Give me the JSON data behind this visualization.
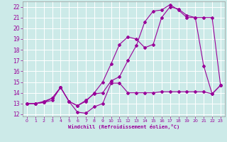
{
  "xlabel": "Windchill (Refroidissement éolien,°C)",
  "xlim": [
    -0.5,
    23.5
  ],
  "ylim": [
    11.8,
    22.5
  ],
  "xticks": [
    0,
    1,
    2,
    3,
    4,
    5,
    6,
    7,
    8,
    9,
    10,
    11,
    12,
    13,
    14,
    15,
    16,
    17,
    18,
    19,
    20,
    21,
    22,
    23
  ],
  "yticks": [
    12,
    13,
    14,
    15,
    16,
    17,
    18,
    19,
    20,
    21,
    22
  ],
  "bg_color": "#cceae8",
  "grid_color": "#b0d4d4",
  "line_color": "#990099",
  "curve1_x": [
    0,
    1,
    2,
    3,
    4,
    5,
    6,
    7,
    8,
    9,
    10,
    11,
    12,
    13,
    14,
    15,
    16,
    17,
    18,
    19,
    20,
    21,
    22,
    23
  ],
  "curve1_y": [
    13.0,
    13.0,
    13.1,
    13.3,
    14.5,
    13.2,
    12.2,
    12.1,
    12.7,
    13.0,
    14.9,
    14.9,
    14.0,
    14.0,
    14.0,
    14.0,
    14.1,
    14.1,
    14.1,
    14.1,
    14.1,
    14.1,
    13.9,
    14.7
  ],
  "curve2_x": [
    0,
    1,
    2,
    3,
    4,
    5,
    6,
    7,
    8,
    9,
    10,
    11,
    12,
    13,
    14,
    15,
    16,
    17,
    18,
    19,
    20,
    21,
    22,
    23
  ],
  "curve2_y": [
    13.0,
    13.0,
    13.1,
    13.5,
    14.5,
    13.2,
    12.8,
    13.2,
    14.0,
    15.0,
    16.7,
    18.5,
    19.2,
    19.0,
    18.2,
    18.5,
    21.0,
    22.0,
    21.8,
    21.2,
    21.0,
    16.5,
    13.9,
    14.7
  ],
  "curve3_x": [
    0,
    1,
    2,
    3,
    4,
    5,
    6,
    7,
    8,
    9,
    10,
    11,
    12,
    13,
    14,
    15,
    16,
    17,
    18,
    19,
    20,
    21,
    22,
    23
  ],
  "curve3_y": [
    13.0,
    13.0,
    13.2,
    13.5,
    14.5,
    13.2,
    12.8,
    13.3,
    13.9,
    14.0,
    15.1,
    15.5,
    17.0,
    18.4,
    20.6,
    21.6,
    21.7,
    22.2,
    21.7,
    21.0,
    21.0,
    21.0,
    21.0,
    14.7
  ]
}
